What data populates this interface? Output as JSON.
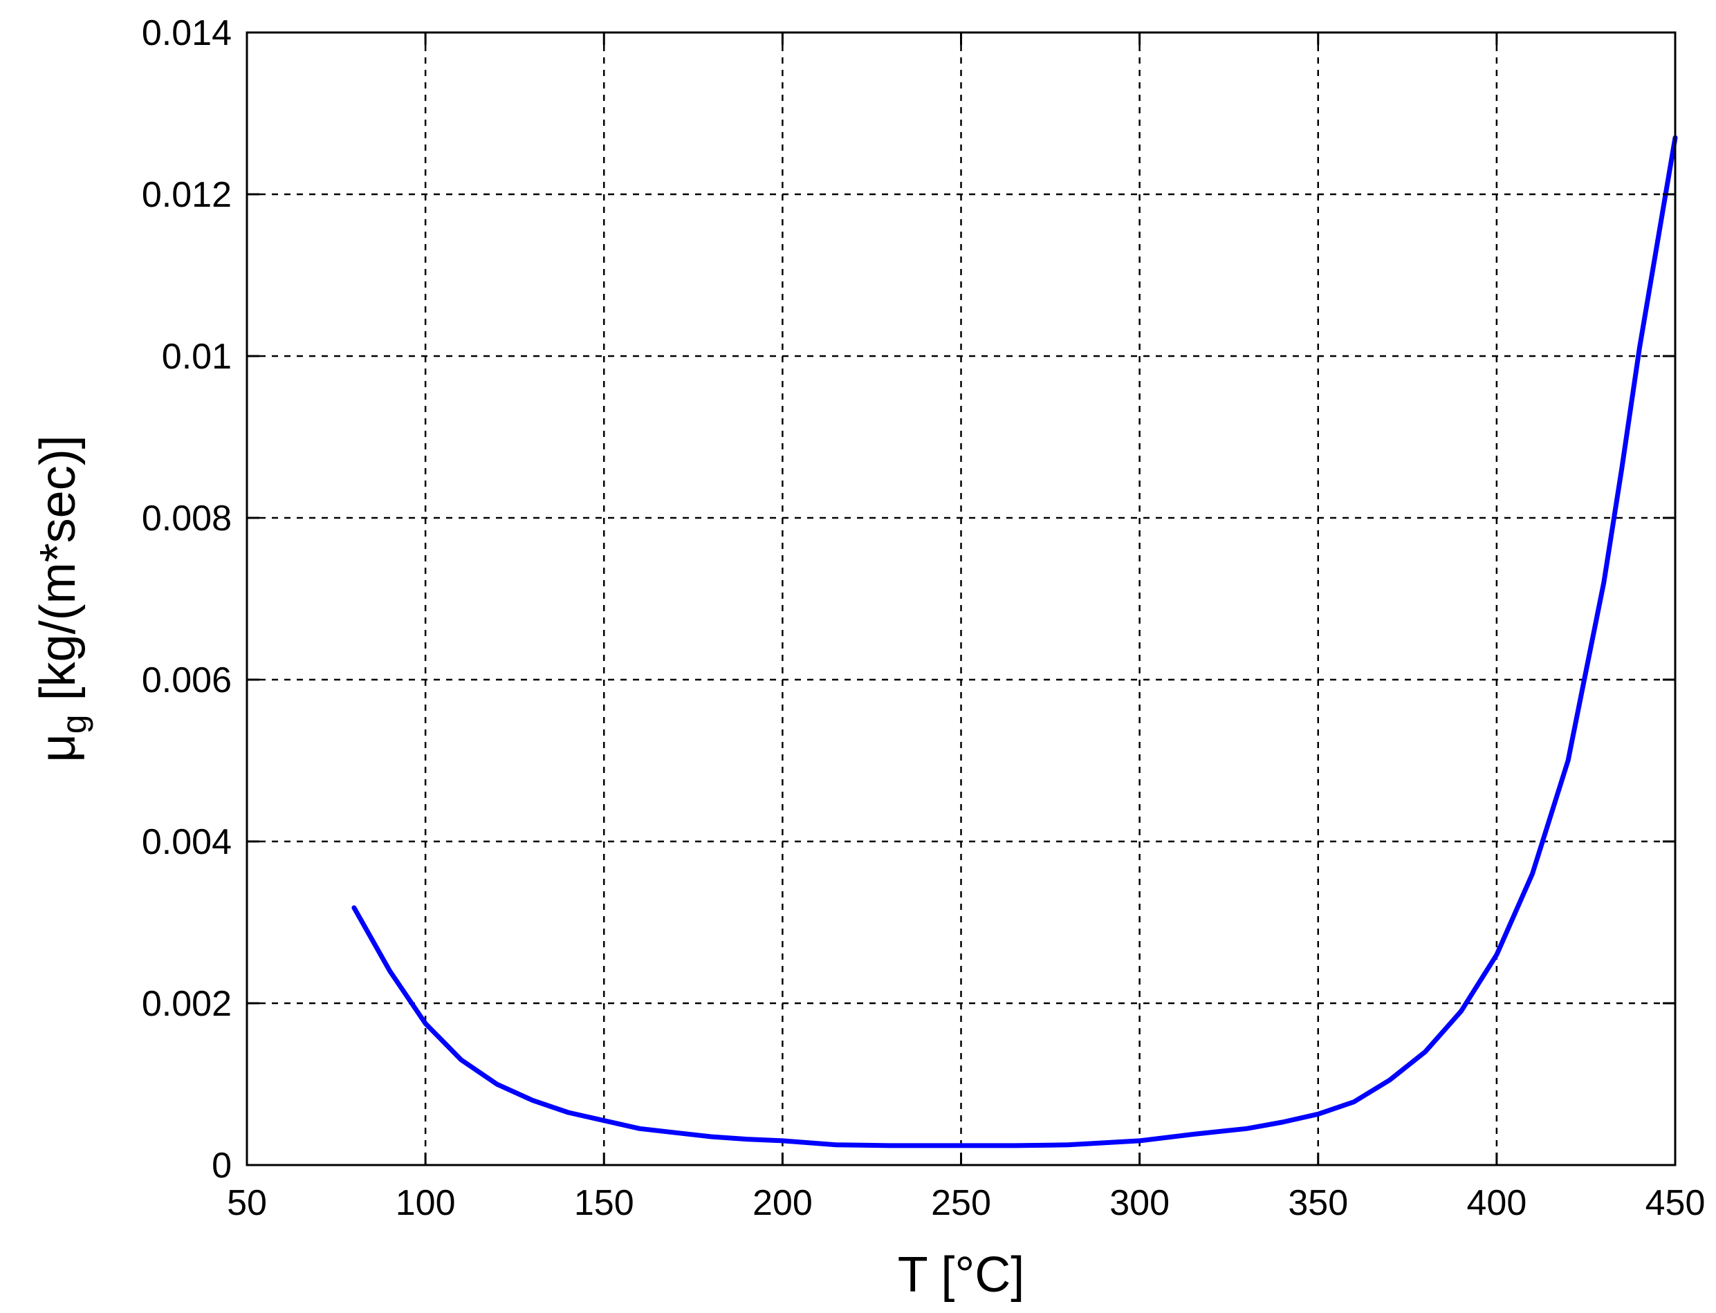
{
  "chart_data": {
    "type": "line",
    "title": "",
    "xlabel": "T [°C]",
    "ylabel": {
      "main": "μ",
      "subscript": "g",
      "units": " [kg/(m*sec)]"
    },
    "xlim": [
      50,
      450
    ],
    "ylim": [
      0,
      0.014
    ],
    "xticks": [
      50,
      100,
      150,
      200,
      250,
      300,
      350,
      400,
      450
    ],
    "xtick_labels": [
      "50",
      "100",
      "150",
      "200",
      "250",
      "300",
      "350",
      "400",
      "450"
    ],
    "yticks": [
      0,
      0.002,
      0.004,
      0.006,
      0.008,
      0.01,
      0.012,
      0.014
    ],
    "ytick_labels": [
      "0",
      "0.002",
      "0.004",
      "0.006",
      "0.008",
      "0.01",
      "0.012",
      "0.014"
    ],
    "grid": true,
    "series": [
      {
        "color": "#0000ff",
        "x": [
          80,
          90,
          100,
          110,
          120,
          130,
          140,
          150,
          160,
          170,
          180,
          190,
          200,
          215,
          230,
          250,
          265,
          280,
          300,
          315,
          330,
          340,
          350,
          360,
          370,
          380,
          390,
          400,
          410,
          415,
          420,
          425,
          430,
          435,
          440,
          445,
          450
        ],
        "y": [
          0.00318,
          0.0024,
          0.00175,
          0.0013,
          0.001,
          0.0008,
          0.00065,
          0.00055,
          0.00045,
          0.0004,
          0.00035,
          0.00032,
          0.0003,
          0.00025,
          0.00024,
          0.00024,
          0.00024,
          0.00025,
          0.0003,
          0.00038,
          0.00045,
          0.00053,
          0.00063,
          0.00078,
          0.00105,
          0.0014,
          0.0019,
          0.0026,
          0.0036,
          0.0043,
          0.005,
          0.0061,
          0.0072,
          0.0086,
          0.0101,
          0.0114,
          0.0127
        ]
      }
    ]
  }
}
